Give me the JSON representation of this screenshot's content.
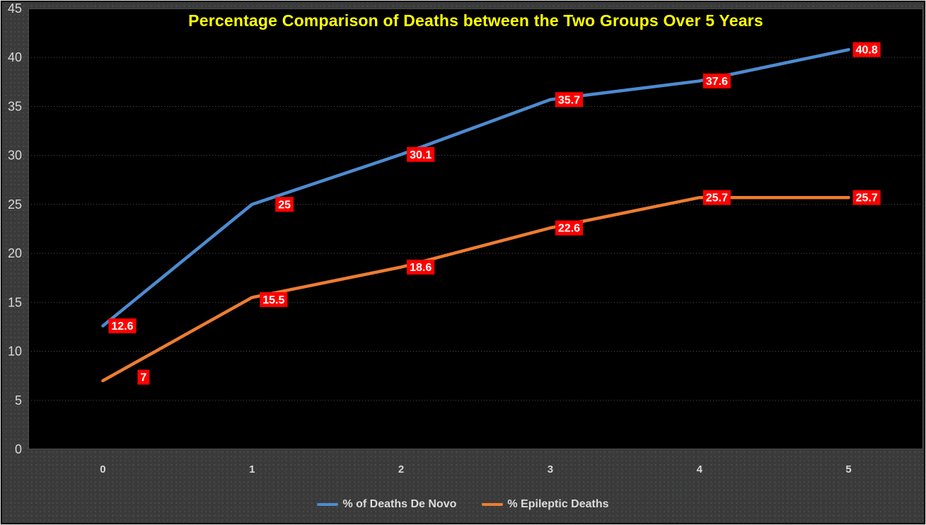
{
  "chart_data": {
    "type": "line",
    "title": "Percentage Comparison of Deaths between the Two Groups Over 5 Years",
    "x": [
      "0",
      "1",
      "2",
      "3",
      "4",
      "5"
    ],
    "series": [
      {
        "name": "% of Deaths De Novo",
        "color": "#4e8bd0",
        "values": [
          12.6,
          25,
          30.1,
          35.7,
          37.6,
          40.8
        ]
      },
      {
        "name": "% Epileptic Deaths",
        "color": "#ed7d31",
        "values": [
          7,
          15.5,
          18.6,
          22.6,
          25.7,
          25.7
        ]
      }
    ],
    "xlabel": "",
    "ylabel": "",
    "ylim": [
      0,
      45
    ],
    "yticks": [
      0,
      5,
      10,
      15,
      20,
      25,
      30,
      35,
      40,
      45
    ],
    "grid": "horizontal-dotted",
    "legend_position": "bottom",
    "data_labels": true
  },
  "colors": {
    "outer_background": "#3a3a3a",
    "plot_background": "#000000",
    "title_text": "#ffff00",
    "axis_text": "#d9d9d9",
    "legend_text": "#dcdcdc",
    "gridline": "#b0b0b0",
    "plot_border": "#4a4a4a",
    "data_label_bg": "#ff0000",
    "data_label_text": "#ffffff",
    "series_blue": "#4e8bd0",
    "series_orange": "#ed7d31"
  }
}
